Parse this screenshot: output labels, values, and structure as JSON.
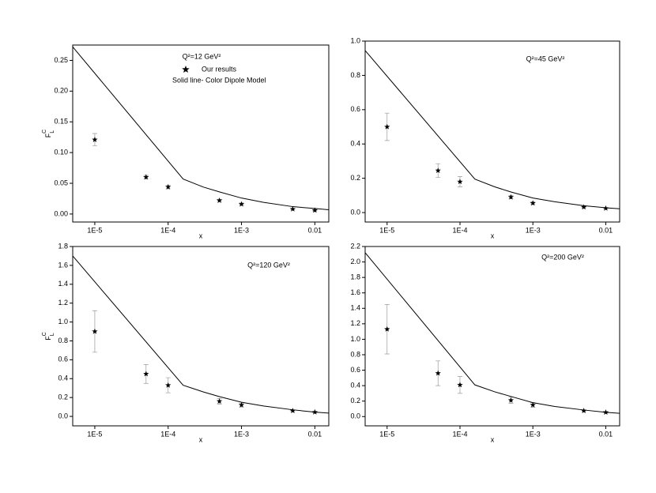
{
  "chart_data": [
    {
      "type": "line",
      "x_label": "x",
      "y_label": "F",
      "y_label_sub": "L",
      "y_label_sup": "C",
      "annotation": "Q²=12 GeV²",
      "xlim": [
        5e-06,
        0.0155
      ],
      "xscale": "log",
      "ylim": [
        -0.013,
        0.275
      ],
      "xticks": [
        {
          "value": 1e-05,
          "label": "1E-5"
        },
        {
          "value": 0.0001,
          "label": "1E-4"
        },
        {
          "value": 0.001,
          "label": "1E-3"
        },
        0.01
      ],
      "yticks": [
        {
          "value": 0,
          "label": "0.00"
        },
        0.05,
        {
          "value": 0.1,
          "label": "0.10"
        },
        0.15,
        {
          "value": 0.2,
          "label": "0.20"
        },
        0.25
      ],
      "series": [
        {
          "name": "Our results",
          "type": "scatter",
          "color": "#000000",
          "x": [
            1e-05,
            5e-05,
            0.0001,
            0.0005,
            0.001,
            0.005,
            0.01
          ],
          "values": [
            0.121,
            0.06,
            0.044,
            0.022,
            0.016,
            0.008,
            0.006
          ],
          "errors": [
            0.01,
            0.003,
            0.003,
            0.002,
            0.002,
            0.001,
            0.001
          ]
        },
        {
          "name": "Solid line- Color Dipole Model",
          "type": "line",
          "color": "#000000",
          "x": [
            5e-06,
            0.00016,
            0.0003,
            0.0005,
            0.001,
            0.002,
            0.005,
            0.01,
            0.0155
          ],
          "values": [
            0.272,
            0.057,
            0.044,
            0.036,
            0.026,
            0.019,
            0.012,
            0.009,
            0.007
          ]
        }
      ]
    },
    {
      "type": "line",
      "x_label": "x",
      "annotation": "Q²=45 GeV²",
      "xlim": [
        5e-06,
        0.0155
      ],
      "xscale": "log",
      "ylim": [
        -0.055,
        1.0
      ],
      "xticks": [
        {
          "value": 1e-05,
          "label": "1E-5"
        },
        {
          "value": 0.0001,
          "label": "1E-4"
        },
        {
          "value": 0.001,
          "label": "1E-3"
        },
        0.01
      ],
      "yticks": [
        {
          "value": 0,
          "label": "0.0"
        },
        0.2,
        0.4,
        0.6,
        0.8,
        {
          "value": 1,
          "label": "1.0"
        }
      ],
      "series": [
        {
          "type": "scatter",
          "color": "#000000",
          "x": [
            1e-05,
            5e-05,
            0.0001,
            0.0005,
            0.001,
            0.005,
            0.01
          ],
          "values": [
            0.5,
            0.245,
            0.18,
            0.09,
            0.055,
            0.032,
            0.025
          ],
          "errors": [
            0.08,
            0.04,
            0.03,
            0.01,
            0.008,
            0.004,
            0.003
          ]
        },
        {
          "type": "line",
          "color": "#000000",
          "x": [
            5e-06,
            0.00016,
            0.0003,
            0.0005,
            0.001,
            0.002,
            0.005,
            0.01,
            0.0155
          ],
          "values": [
            0.945,
            0.195,
            0.15,
            0.12,
            0.085,
            0.063,
            0.04,
            0.028,
            0.022
          ]
        }
      ]
    },
    {
      "type": "line",
      "x_label": "x",
      "y_label": "F",
      "y_label_sub": "L",
      "y_label_sup": "C",
      "annotation": "Q²=120 GeV²",
      "xlim": [
        5e-06,
        0.0155
      ],
      "xscale": "log",
      "ylim": [
        -0.1,
        1.8
      ],
      "xticks": [
        {
          "value": 1e-05,
          "label": "1E-5"
        },
        {
          "value": 0.0001,
          "label": "1E-4"
        },
        {
          "value": 0.001,
          "label": "1E-3"
        },
        0.01
      ],
      "yticks": [
        {
          "value": 0,
          "label": "0.0"
        },
        0.2,
        0.4,
        0.6,
        0.8,
        {
          "value": 1,
          "label": "1.0"
        },
        1.2,
        1.4,
        1.6,
        1.8
      ],
      "series": [
        {
          "type": "scatter",
          "color": "#000000",
          "x": [
            1e-05,
            5e-05,
            0.0001,
            0.0005,
            0.001,
            0.005,
            0.01
          ],
          "values": [
            0.9,
            0.45,
            0.33,
            0.16,
            0.12,
            0.06,
            0.045
          ],
          "errors": [
            0.22,
            0.1,
            0.08,
            0.03,
            0.02,
            0.008,
            0.006
          ]
        },
        {
          "type": "line",
          "color": "#000000",
          "x": [
            5e-06,
            0.00016,
            0.0003,
            0.0005,
            0.001,
            0.002,
            0.005,
            0.01,
            0.0155
          ],
          "values": [
            1.7,
            0.33,
            0.26,
            0.21,
            0.15,
            0.11,
            0.07,
            0.045,
            0.035
          ]
        }
      ]
    },
    {
      "type": "line",
      "x_label": "x",
      "annotation": "Q²=200 GeV²",
      "xlim": [
        5e-06,
        0.0155
      ],
      "xscale": "log",
      "ylim": [
        -0.12,
        2.2
      ],
      "xticks": [
        {
          "value": 1e-05,
          "label": "1E-5"
        },
        {
          "value": 0.0001,
          "label": "1E-4"
        },
        {
          "value": 0.001,
          "label": "1E-3"
        },
        0.01
      ],
      "yticks": [
        {
          "value": 0,
          "label": "0.0"
        },
        0.2,
        0.4,
        0.6,
        0.8,
        {
          "value": 1,
          "label": "1.0"
        },
        1.2,
        1.4,
        1.6,
        1.8,
        {
          "value": 2,
          "label": "2.0"
        },
        2.2
      ],
      "series": [
        {
          "type": "scatter",
          "color": "#000000",
          "x": [
            1e-05,
            5e-05,
            0.0001,
            0.0005,
            0.001,
            0.005,
            0.01
          ],
          "values": [
            1.13,
            0.56,
            0.41,
            0.21,
            0.15,
            0.075,
            0.055
          ],
          "errors": [
            0.32,
            0.16,
            0.11,
            0.04,
            0.03,
            0.01,
            0.008
          ]
        },
        {
          "type": "line",
          "color": "#000000",
          "x": [
            5e-06,
            0.00016,
            0.0003,
            0.0005,
            0.001,
            0.002,
            0.005,
            0.01,
            0.0155
          ],
          "values": [
            2.12,
            0.41,
            0.32,
            0.26,
            0.18,
            0.13,
            0.085,
            0.055,
            0.042
          ]
        }
      ]
    }
  ]
}
